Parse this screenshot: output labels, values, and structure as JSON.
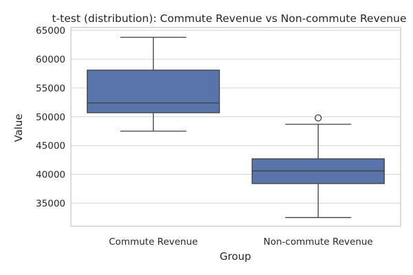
{
  "chart_data": {
    "type": "box",
    "title": "t-test (distribution): Commute Revenue vs Non-commute Revenue",
    "xlabel": "Group",
    "ylabel": "Value",
    "ylim": [
      31000,
      65500
    ],
    "yticks": [
      35000,
      40000,
      45000,
      50000,
      55000,
      60000,
      65000
    ],
    "ytick_labels": [
      "35000",
      "40000",
      "45000",
      "50000",
      "55000",
      "60000",
      "65000"
    ],
    "grid": true,
    "categories": [
      "Commute Revenue",
      "Non-commute Revenue"
    ],
    "boxes": [
      {
        "name": "Commute Revenue",
        "whisker_low": 47500,
        "q1": 50700,
        "median": 52400,
        "q3": 58100,
        "whisker_high": 63800,
        "outliers": []
      },
      {
        "name": "Non-commute Revenue",
        "whisker_low": 32500,
        "q1": 38400,
        "median": 40600,
        "q3": 42700,
        "whisker_high": 48700,
        "outliers": [
          49800
        ]
      }
    ],
    "colors": {
      "box_fill": "#5874a9",
      "line": "#3f3f3f",
      "grid": "#d9d9d9",
      "axes_edge": "#cccccc"
    }
  }
}
